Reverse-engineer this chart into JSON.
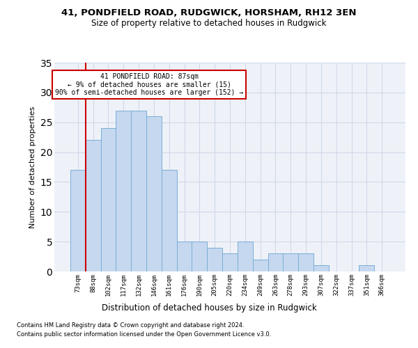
{
  "title1": "41, PONDFIELD ROAD, RUDGWICK, HORSHAM, RH12 3EN",
  "title2": "Size of property relative to detached houses in Rudgwick",
  "xlabel": "Distribution of detached houses by size in Rudgwick",
  "ylabel": "Number of detached properties",
  "categories": [
    "73sqm",
    "88sqm",
    "102sqm",
    "117sqm",
    "132sqm",
    "146sqm",
    "161sqm",
    "176sqm",
    "190sqm",
    "205sqm",
    "220sqm",
    "234sqm",
    "249sqm",
    "263sqm",
    "278sqm",
    "293sqm",
    "307sqm",
    "322sqm",
    "337sqm",
    "351sqm",
    "366sqm"
  ],
  "values": [
    17,
    22,
    24,
    27,
    27,
    26,
    17,
    5,
    5,
    4,
    3,
    5,
    2,
    3,
    3,
    3,
    1,
    0,
    0,
    1,
    0
  ],
  "bar_color": "#c5d8f0",
  "bar_edge_color": "#7aadd4",
  "grid_color": "#d0d8e8",
  "background_color": "#eef2f8",
  "vline_color": "#cc0000",
  "annotation_text": "41 PONDFIELD ROAD: 87sqm\n← 9% of detached houses are smaller (15)\n90% of semi-detached houses are larger (152) →",
  "annotation_box_color": "#ffffff",
  "annotation_box_edge": "#cc0000",
  "footnote1": "Contains HM Land Registry data © Crown copyright and database right 2024.",
  "footnote2": "Contains public sector information licensed under the Open Government Licence v3.0.",
  "ylim": [
    0,
    35
  ],
  "yticks": [
    0,
    5,
    10,
    15,
    20,
    25,
    30,
    35
  ]
}
